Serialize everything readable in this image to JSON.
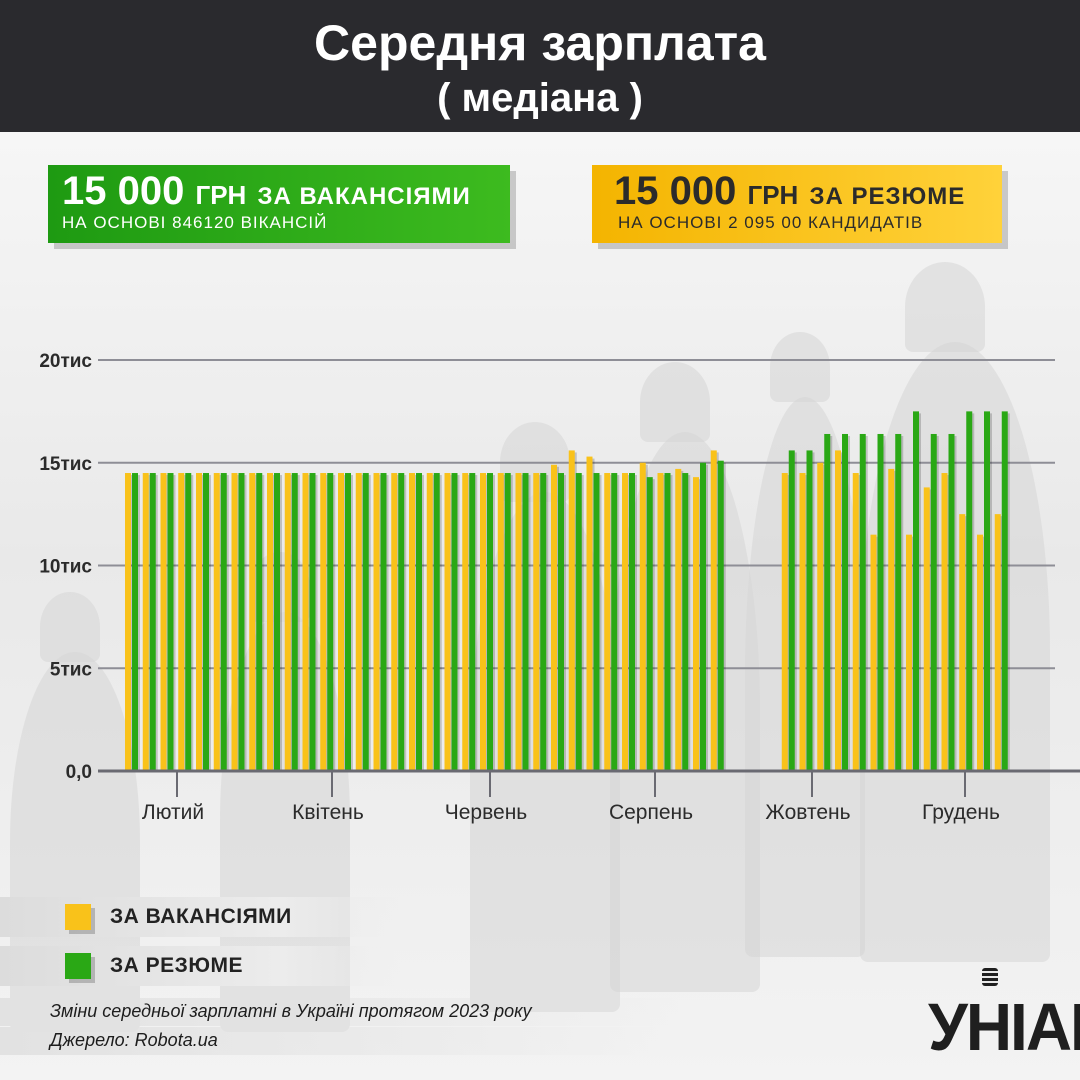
{
  "header": {
    "title": "Середня зарплата",
    "subtitle": "( медіана )"
  },
  "summary": {
    "vacancies": {
      "amount": "15 000",
      "currency": "ГРН",
      "label": "ЗА ВАКАНСІЯМИ",
      "basis": "НА ОСНОВІ 846120 ВІКАНСІЙ",
      "color": "#2aa815"
    },
    "resumes": {
      "amount": "15 000",
      "currency": "ГРН",
      "label": "ЗА РЕЗЮМЕ",
      "basis": "НА ОСНОВІ 2 095 00 КАНДИДАТІВ",
      "color": "#f9c21a"
    }
  },
  "legend": {
    "vacancies": "ЗА ВАКАНСІЯМИ",
    "resumes": "ЗА РЕЗЮМЕ"
  },
  "footer": {
    "note": "Зміни середньої зарплатні в Україні протягом 2023 року",
    "source": "Джерело: Robota.ua"
  },
  "logo": {
    "text": "УНІАН"
  },
  "chart_data": {
    "type": "bar",
    "yticks": [
      "0,0",
      "5тис",
      "10тис",
      "15тис",
      "20тис"
    ],
    "ytick_values": [
      0,
      5000,
      10000,
      15000,
      20000
    ],
    "ylim": [
      0,
      20000
    ],
    "xticks": [
      "Лютий",
      "Квітень",
      "Червень",
      "Серпень",
      "Жовтень",
      "Грудень"
    ],
    "grid": true,
    "series": [
      {
        "name": "ЗА ВАКАНСІЯМИ",
        "color": "#f9c21a",
        "values": [
          14500,
          14500,
          14500,
          14500,
          14500,
          14500,
          14500,
          14500,
          14500,
          14500,
          14500,
          14500,
          14500,
          14500,
          14500,
          14500,
          14500,
          14500,
          14500,
          14500,
          14500,
          14500,
          14500,
          14500,
          14900,
          15600,
          15300,
          14500,
          14500,
          15000,
          14500,
          14700,
          14300,
          15600,
          null,
          null,
          null,
          14500,
          14500,
          15000,
          15600,
          14500,
          11500,
          14700,
          11500,
          13800,
          14500,
          12500,
          11500,
          12500
        ]
      },
      {
        "name": "ЗА РЕЗЮМЕ",
        "color": "#2aa815",
        "values": [
          14500,
          14500,
          14500,
          14500,
          14500,
          14500,
          14500,
          14500,
          14500,
          14500,
          14500,
          14500,
          14500,
          14500,
          14500,
          14500,
          14500,
          14500,
          14500,
          14500,
          14500,
          14500,
          14500,
          14500,
          14500,
          14500,
          14500,
          14500,
          14500,
          14300,
          14500,
          14500,
          15000,
          15100,
          null,
          null,
          null,
          15600,
          15600,
          16400,
          16400,
          16400,
          16400,
          16400,
          17500,
          16400,
          16400,
          17500,
          17500,
          17500
        ]
      }
    ]
  }
}
